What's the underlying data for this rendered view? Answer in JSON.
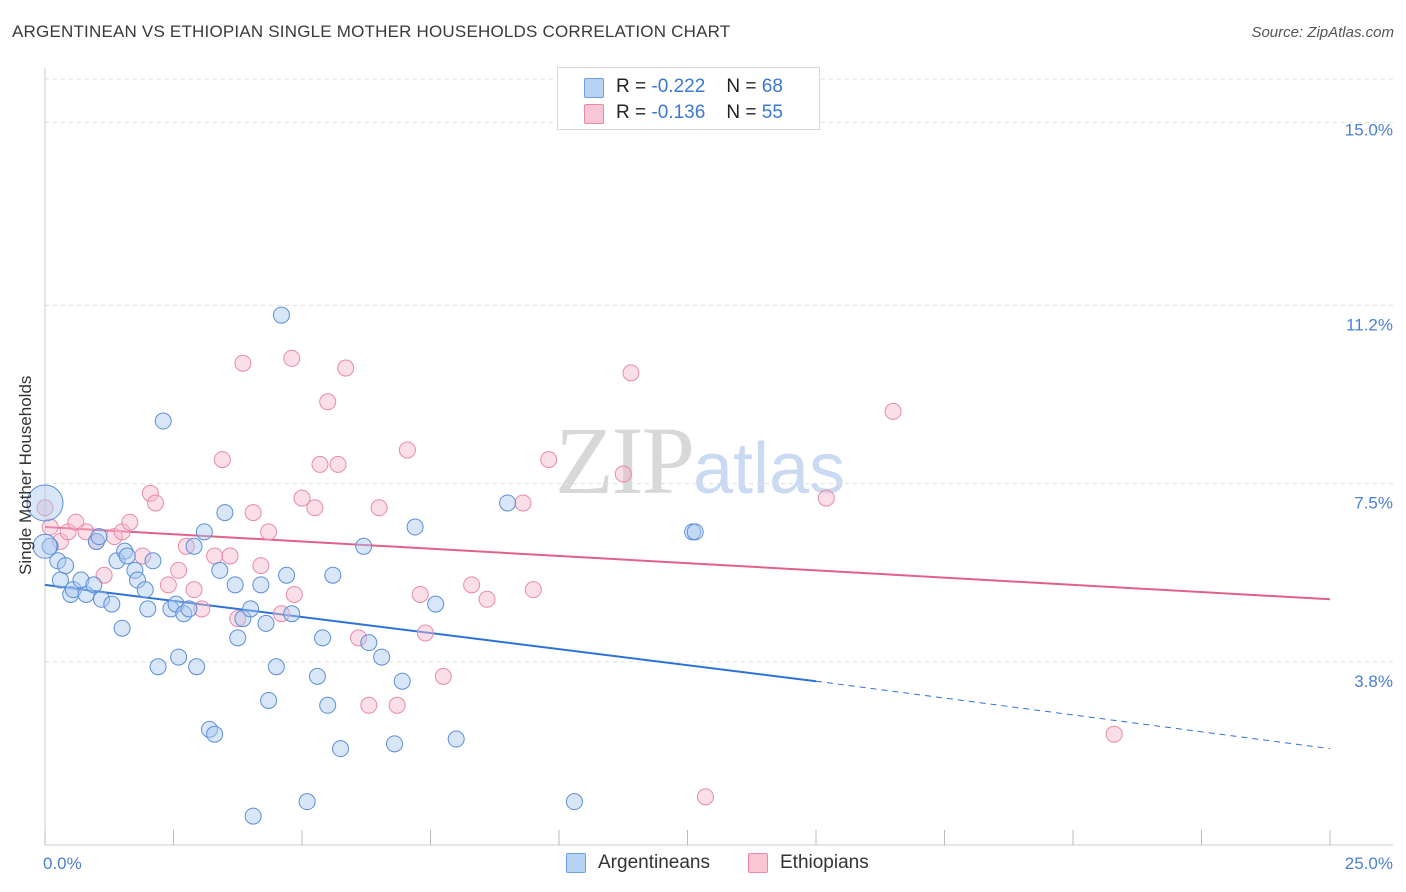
{
  "header": {
    "title": "ARGENTINEAN VS ETHIOPIAN SINGLE MOTHER HOUSEHOLDS CORRELATION CHART",
    "source": "Source: ZipAtlas.com"
  },
  "watermark": {
    "zip": "ZIP",
    "atlas": "atlas"
  },
  "legend_stats": {
    "argentineans": {
      "r_label": "R =",
      "r_value": "-0.222",
      "n_label": "N =",
      "n_value": "68"
    },
    "ethiopians": {
      "r_label": "R =",
      "r_value": "-0.136",
      "n_label": "N =",
      "n_value": "55"
    }
  },
  "bottom_legend": {
    "argentineans": "Argentineans",
    "ethiopians": "Ethiopians"
  },
  "colors": {
    "blue_fill": "#a9c8f0",
    "blue_stroke": "#5b8fd9",
    "blue_line": "#2f72d6",
    "pink_fill": "#f7b8cb",
    "pink_stroke": "#e88aa6",
    "pink_line": "#e0628c",
    "grid": "#dddddd",
    "axis_text": "#4a7fd4"
  },
  "chart_data": {
    "type": "scatter",
    "title": "ARGENTINEAN VS ETHIOPIAN SINGLE MOTHER HOUSEHOLDS CORRELATION CHART",
    "xlabel": "",
    "ylabel": "Single Mother Households",
    "xlim": [
      0,
      25
    ],
    "ylim": [
      0,
      15.9
    ],
    "x_tick_labels": [
      "0.0%",
      "25.0%"
    ],
    "y_ticks": [
      3.8,
      7.5,
      11.2,
      15.0
    ],
    "y_tick_labels": [
      "3.8%",
      "7.5%",
      "11.2%",
      "15.0%"
    ],
    "grid": true,
    "legend_position": "top-center",
    "series": [
      {
        "name": "Argentineans",
        "r": -0.222,
        "n": 68,
        "trend": {
          "x_start": 0,
          "y_start": 5.4,
          "x_solid_end": 15,
          "y_solid_end": 3.4,
          "x_end": 25,
          "y_end": 2.0
        },
        "points": [
          [
            0.0,
            7.1
          ],
          [
            0.1,
            6.2
          ],
          [
            0.25,
            5.9
          ],
          [
            0.3,
            5.5
          ],
          [
            0.4,
            5.8
          ],
          [
            0.5,
            5.2
          ],
          [
            0.55,
            5.3
          ],
          [
            0.7,
            5.5
          ],
          [
            0.8,
            5.2
          ],
          [
            0.95,
            5.4
          ],
          [
            1.0,
            6.3
          ],
          [
            1.05,
            6.4
          ],
          [
            1.1,
            5.1
          ],
          [
            1.3,
            5.0
          ],
          [
            1.4,
            5.9
          ],
          [
            1.5,
            4.5
          ],
          [
            1.55,
            6.1
          ],
          [
            1.6,
            6.0
          ],
          [
            1.75,
            5.7
          ],
          [
            1.8,
            5.5
          ],
          [
            1.95,
            5.3
          ],
          [
            2.0,
            4.9
          ],
          [
            2.1,
            5.9
          ],
          [
            2.2,
            3.7
          ],
          [
            2.3,
            8.8
          ],
          [
            2.45,
            4.9
          ],
          [
            2.55,
            5.0
          ],
          [
            2.6,
            3.9
          ],
          [
            2.7,
            4.8
          ],
          [
            2.8,
            4.9
          ],
          [
            2.95,
            3.7
          ],
          [
            2.9,
            6.2
          ],
          [
            3.1,
            6.5
          ],
          [
            3.2,
            2.4
          ],
          [
            3.3,
            2.3
          ],
          [
            3.4,
            5.7
          ],
          [
            3.5,
            6.9
          ],
          [
            3.7,
            5.4
          ],
          [
            3.75,
            4.3
          ],
          [
            3.85,
            4.7
          ],
          [
            4.0,
            4.9
          ],
          [
            4.05,
            0.6
          ],
          [
            4.2,
            5.4
          ],
          [
            4.3,
            4.6
          ],
          [
            4.35,
            3.0
          ],
          [
            4.5,
            3.7
          ],
          [
            4.6,
            11.0
          ],
          [
            4.7,
            5.6
          ],
          [
            4.8,
            4.8
          ],
          [
            5.1,
            0.9
          ],
          [
            5.3,
            3.5
          ],
          [
            5.4,
            4.3
          ],
          [
            5.5,
            2.9
          ],
          [
            5.6,
            5.6
          ],
          [
            5.75,
            2.0
          ],
          [
            6.2,
            6.2
          ],
          [
            6.3,
            4.2
          ],
          [
            6.55,
            3.9
          ],
          [
            6.8,
            2.1
          ],
          [
            6.95,
            3.4
          ],
          [
            7.2,
            6.6
          ],
          [
            7.6,
            5.0
          ],
          [
            8.0,
            2.2
          ],
          [
            9.0,
            7.1
          ],
          [
            10.3,
            0.9
          ],
          [
            12.6,
            6.5
          ],
          [
            12.65,
            6.5
          ],
          [
            0.0,
            6.2
          ]
        ]
      },
      {
        "name": "Ethiopians",
        "r": -0.136,
        "n": 55,
        "trend": {
          "x_start": 0,
          "y_start": 6.6,
          "x_end": 25,
          "y_end": 5.1
        },
        "points": [
          [
            0.0,
            7.0
          ],
          [
            0.1,
            6.6
          ],
          [
            0.3,
            6.3
          ],
          [
            0.45,
            6.5
          ],
          [
            0.6,
            6.7
          ],
          [
            0.8,
            6.5
          ],
          [
            1.0,
            6.3
          ],
          [
            1.15,
            5.6
          ],
          [
            1.35,
            6.4
          ],
          [
            1.5,
            6.5
          ],
          [
            1.65,
            6.7
          ],
          [
            1.9,
            6.0
          ],
          [
            2.05,
            7.3
          ],
          [
            2.15,
            7.1
          ],
          [
            2.4,
            5.4
          ],
          [
            2.6,
            5.7
          ],
          [
            2.75,
            6.2
          ],
          [
            2.9,
            5.3
          ],
          [
            3.05,
            4.9
          ],
          [
            3.3,
            6.0
          ],
          [
            3.45,
            8.0
          ],
          [
            3.6,
            6.0
          ],
          [
            3.75,
            4.7
          ],
          [
            3.85,
            10.0
          ],
          [
            4.05,
            6.9
          ],
          [
            4.2,
            5.8
          ],
          [
            4.35,
            6.5
          ],
          [
            4.6,
            4.8
          ],
          [
            4.8,
            10.1
          ],
          [
            4.85,
            5.2
          ],
          [
            5.0,
            7.2
          ],
          [
            5.25,
            7.0
          ],
          [
            5.35,
            7.9
          ],
          [
            5.5,
            9.2
          ],
          [
            5.7,
            7.9
          ],
          [
            5.85,
            9.9
          ],
          [
            6.1,
            4.3
          ],
          [
            6.3,
            2.9
          ],
          [
            6.5,
            7.0
          ],
          [
            6.85,
            2.9
          ],
          [
            7.05,
            8.2
          ],
          [
            7.3,
            5.2
          ],
          [
            7.4,
            4.4
          ],
          [
            7.75,
            3.5
          ],
          [
            8.3,
            5.4
          ],
          [
            8.6,
            5.1
          ],
          [
            9.3,
            7.1
          ],
          [
            9.5,
            5.3
          ],
          [
            9.8,
            8.0
          ],
          [
            11.25,
            7.7
          ],
          [
            11.4,
            9.8
          ],
          [
            12.85,
            1.0
          ],
          [
            15.2,
            7.2
          ],
          [
            16.5,
            9.0
          ],
          [
            20.8,
            2.3
          ]
        ]
      }
    ]
  }
}
